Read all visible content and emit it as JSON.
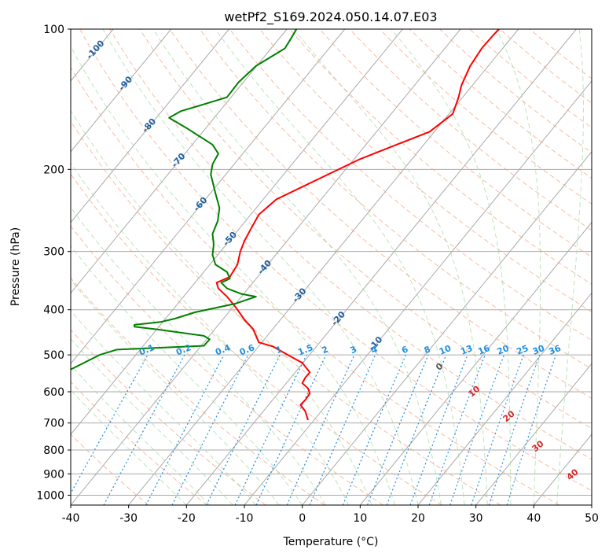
{
  "chart_data": {
    "type": "line",
    "title": "wetPf2_S169.2024.050.14.07.E03",
    "xlabel": "Temperature (°C)",
    "ylabel": "Pressure (hPa)",
    "xlim": [
      -40,
      50
    ],
    "ylim": [
      1050,
      100
    ],
    "y_scale": "log",
    "grid": true,
    "x_ticks": [
      -40,
      -30,
      -20,
      -10,
      0,
      10,
      20,
      30,
      40,
      50
    ],
    "y_ticks": [
      100,
      200,
      300,
      400,
      500,
      600,
      700,
      800,
      900,
      1000
    ],
    "series": [
      {
        "role": "temperature",
        "color": "#ff0000",
        "points": [
          [
            1,
            690
          ],
          [
            0.5,
            660
          ],
          [
            -0.3,
            640
          ],
          [
            0.5,
            625
          ],
          [
            1.3,
            605
          ],
          [
            1,
            590
          ],
          [
            0,
            575
          ],
          [
            0.5,
            560
          ],
          [
            1.3,
            545
          ],
          [
            0,
            520
          ],
          [
            -2.5,
            500
          ],
          [
            -5,
            480
          ],
          [
            -7.5,
            470
          ],
          [
            -8.5,
            440
          ],
          [
            -10,
            420
          ],
          [
            -11.5,
            395
          ],
          [
            -13,
            375
          ],
          [
            -14.5,
            360
          ],
          [
            -14.8,
            350
          ],
          [
            -12.5,
            340
          ],
          [
            -11.2,
            320
          ],
          [
            -10.7,
            300
          ],
          [
            -10,
            285
          ],
          [
            -9,
            270
          ],
          [
            -7.5,
            250
          ],
          [
            -4.5,
            232
          ],
          [
            2,
            212
          ],
          [
            10,
            190
          ],
          [
            22,
            166
          ],
          [
            26,
            152
          ],
          [
            27,
            140
          ],
          [
            27.5,
            132
          ],
          [
            29,
            120
          ],
          [
            31,
            110
          ],
          [
            33,
            103
          ],
          [
            34,
            100
          ]
        ]
      },
      {
        "role": "dewpoint",
        "color": "#008000",
        "points": [
          [
            -41,
            545
          ],
          [
            -35,
            500
          ],
          [
            -32,
            487
          ],
          [
            -17,
            478
          ],
          [
            -16,
            463
          ],
          [
            -17,
            455
          ],
          [
            -25,
            441
          ],
          [
            -29,
            435
          ],
          [
            -29,
            431
          ],
          [
            -24.5,
            425
          ],
          [
            -22,
            418
          ],
          [
            -18.5,
            405
          ],
          [
            -11.5,
            388
          ],
          [
            -8,
            375
          ],
          [
            -10.5,
            370
          ],
          [
            -13,
            360
          ],
          [
            -14,
            350
          ],
          [
            -12.5,
            343
          ],
          [
            -13,
            332
          ],
          [
            -15,
            320
          ],
          [
            -15.5,
            305
          ],
          [
            -15.3,
            290
          ],
          [
            -15.5,
            275
          ],
          [
            -14.6,
            258
          ],
          [
            -14.3,
            242
          ],
          [
            -15,
            225
          ],
          [
            -15.8,
            205
          ],
          [
            -15.5,
            195
          ],
          [
            -14.5,
            185
          ],
          [
            -15.5,
            177
          ],
          [
            -20,
            163
          ],
          [
            -23,
            155
          ],
          [
            -21,
            150
          ],
          [
            -17,
            145
          ],
          [
            -13,
            140
          ],
          [
            -11,
            130
          ],
          [
            -8,
            120
          ],
          [
            -3,
            110
          ],
          [
            -2,
            105
          ],
          [
            -1,
            100
          ]
        ]
      }
    ],
    "dry_adiabat_labels": [
      "-100",
      "-90",
      "-80",
      "-70",
      "-60",
      "-50",
      "-40",
      "-30",
      "-20",
      "-10"
    ],
    "moist_adiabat_labels": [
      "0",
      "10",
      "20",
      "30",
      "40"
    ],
    "mixing_ratio_labels": [
      "0.1",
      "0.2",
      "0.4",
      "0.6",
      "1",
      "1.5",
      "2",
      "3",
      "4",
      "6",
      "8",
      "10",
      "13",
      "16",
      "20",
      "25",
      "30",
      "36"
    ],
    "colors": {
      "temperature": "#ff0000",
      "dewpoint": "#008000",
      "dry_adiabat": "#f4a582",
      "moist_adiabat": "#9fd89f",
      "mixing_ratio": "#1f8fe0",
      "dry_label": "#1f5fa0",
      "moist_label": "#d62728",
      "grid": "#aaaaaa"
    }
  }
}
